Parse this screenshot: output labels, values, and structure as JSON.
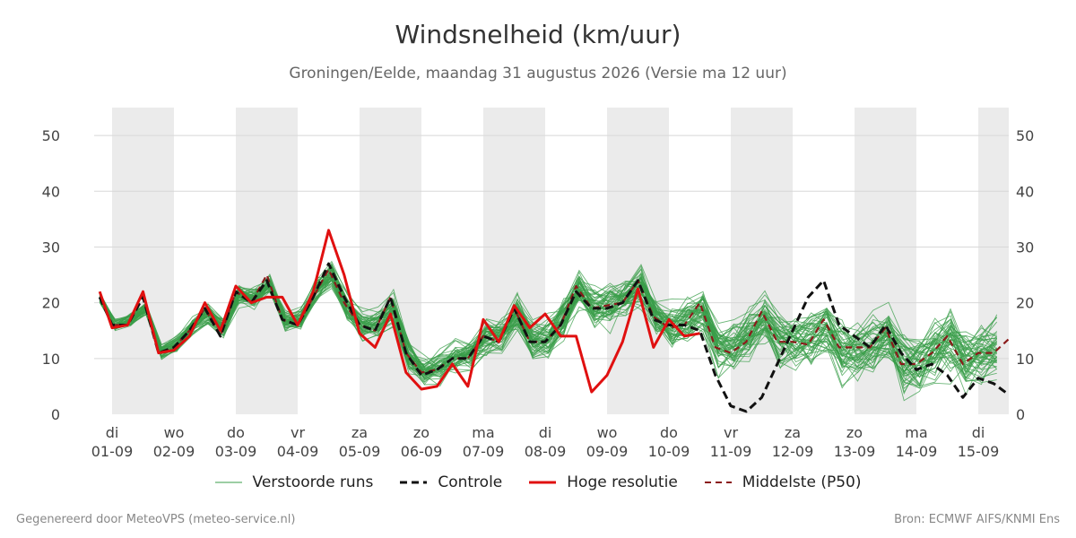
{
  "title": "Windsnelheid (km/uur)",
  "subtitle": "Groningen/Eelde, maandag 31 augustus 2026 (Versie ma 12 uur)",
  "footer": {
    "left": "Gegenereerd door MeteoVPS (meteo-service.nl)",
    "right": "Bron: ECMWF AIFS/KNMI Ens"
  },
  "colors": {
    "ensemble": "#3a9e4a",
    "control": "#111111",
    "hires": "#e01010",
    "median": "#8b1a1a",
    "shade": "#ebebeb",
    "grid": "#d8d8d8"
  },
  "chart_data": {
    "type": "line",
    "ylim": [
      0,
      55
    ],
    "yticks": [
      0,
      10,
      20,
      30,
      40,
      50
    ],
    "x_unit": "days since 01-09 00:00",
    "xlim": [
      -0.02,
      14.5
    ],
    "day_ticks": [
      {
        "day": "di",
        "date": "01-09"
      },
      {
        "day": "wo",
        "date": "02-09"
      },
      {
        "day": "do",
        "date": "03-09"
      },
      {
        "day": "vr",
        "date": "04-09"
      },
      {
        "day": "za",
        "date": "05-09"
      },
      {
        "day": "zo",
        "date": "06-09"
      },
      {
        "day": "ma",
        "date": "07-09"
      },
      {
        "day": "di",
        "date": "08-09"
      },
      {
        "day": "wo",
        "date": "09-09"
      },
      {
        "day": "do",
        "date": "10-09"
      },
      {
        "day": "vr",
        "date": "11-09"
      },
      {
        "day": "za",
        "date": "12-09"
      },
      {
        "day": "zo",
        "date": "13-09"
      },
      {
        "day": "ma",
        "date": "14-09"
      },
      {
        "day": "di",
        "date": "15-09"
      }
    ],
    "shaded_days": [
      0,
      2,
      4,
      6,
      8,
      10,
      12,
      14
    ],
    "ensemble_members": 50,
    "legend": [
      {
        "key": "ensemble",
        "label": "Verstoorde runs"
      },
      {
        "key": "control",
        "label": "Controle"
      },
      {
        "key": "hires",
        "label": "Hoge resolutie"
      },
      {
        "key": "median",
        "label": "Middelste (P50)"
      }
    ],
    "series": [
      {
        "name": "Hoge resolutie",
        "x": [
          -0.2,
          0.0,
          0.25,
          0.5,
          0.75,
          1.0,
          1.25,
          1.5,
          1.75,
          2.0,
          2.25,
          2.5,
          2.75,
          3.0,
          3.25,
          3.5,
          3.75,
          4.0,
          4.25,
          4.5,
          4.75,
          5.0,
          5.25,
          5.5,
          5.75,
          6.0,
          6.25,
          6.5,
          6.75,
          7.0,
          7.25,
          7.5,
          7.75,
          8.0,
          8.25,
          8.5,
          8.75,
          9.0,
          9.25,
          9.5
        ],
        "y": [
          22,
          15.5,
          16,
          22,
          11,
          11.5,
          14,
          20,
          15,
          23,
          20,
          21,
          21,
          16,
          22,
          33,
          25,
          14.5,
          12,
          18,
          7.5,
          4.5,
          5,
          9,
          5,
          17,
          13,
          19.5,
          15.5,
          18,
          14,
          14,
          4,
          7,
          13,
          22.5,
          12,
          17,
          14,
          14.5
        ]
      },
      {
        "name": "Controle",
        "x": [
          -0.2,
          0.0,
          0.25,
          0.5,
          0.75,
          1.0,
          1.25,
          1.5,
          1.75,
          2.0,
          2.25,
          2.5,
          2.75,
          3.0,
          3.25,
          3.5,
          3.75,
          4.0,
          4.25,
          4.5,
          4.75,
          5.0,
          5.25,
          5.5,
          5.75,
          6.0,
          6.25,
          6.5,
          6.75,
          7.0,
          7.25,
          7.5,
          7.75,
          8.0,
          8.25,
          8.5,
          8.75,
          9.0,
          9.25,
          9.5,
          9.75,
          10.0,
          10.25,
          10.5,
          10.75,
          11.0,
          11.25,
          11.5,
          11.75,
          12.0,
          12.25,
          12.5,
          12.75,
          13.0,
          13.25,
          13.5,
          13.75,
          14.0,
          14.25,
          14.5
        ],
        "y": [
          21,
          16,
          16,
          21,
          11,
          12,
          15,
          19,
          14,
          22,
          20,
          24,
          17,
          16,
          21,
          27,
          21,
          16,
          15,
          21,
          11,
          7,
          8,
          10,
          10,
          14,
          13,
          19,
          13,
          13,
          16,
          22,
          19,
          19,
          20,
          24,
          17,
          16,
          16,
          15,
          7,
          1.5,
          0.5,
          3,
          9,
          15,
          21,
          24,
          16,
          14,
          12,
          16,
          11,
          8,
          9,
          7,
          3,
          6.5,
          5.5,
          3.5
        ]
      },
      {
        "name": "Middelste (P50)",
        "x": [
          -0.2,
          0.0,
          0.25,
          0.5,
          0.75,
          1.0,
          1.25,
          1.5,
          1.75,
          2.0,
          2.25,
          2.5,
          2.75,
          3.0,
          3.25,
          3.5,
          3.75,
          4.0,
          4.25,
          4.5,
          4.75,
          5.0,
          5.25,
          5.5,
          5.75,
          6.0,
          6.25,
          6.5,
          6.75,
          7.0,
          7.25,
          7.5,
          7.75,
          8.0,
          8.25,
          8.5,
          8.75,
          9.0,
          9.25,
          9.5,
          9.75,
          10.0,
          10.25,
          10.5,
          10.75,
          11.0,
          11.25,
          11.5,
          11.75,
          12.0,
          12.25,
          12.5,
          12.75,
          13.0,
          13.25,
          13.5,
          13.75,
          14.0,
          14.25,
          14.5
        ],
        "y": [
          21,
          16,
          16,
          21,
          11,
          12,
          15,
          19,
          14,
          22,
          20,
          25,
          17,
          16,
          21,
          26,
          20,
          16,
          15,
          21,
          11,
          7.5,
          8,
          10,
          10,
          14,
          13,
          19,
          13,
          13,
          16,
          23,
          19,
          19.5,
          20,
          24,
          17.5,
          15.5,
          16,
          20,
          12,
          11,
          13,
          18.5,
          13,
          13,
          12.5,
          17,
          12,
          12,
          12,
          15.5,
          9,
          9,
          11,
          14,
          9,
          11,
          11,
          13.5
        ]
      }
    ]
  }
}
